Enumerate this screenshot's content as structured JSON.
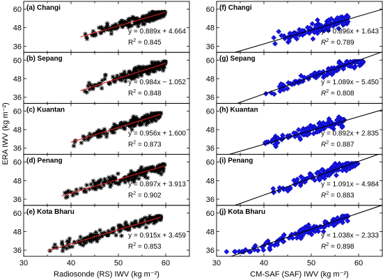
{
  "chart_data": {
    "type": "scatter",
    "panels": [
      {
        "letter": "(a)",
        "station": "Changi",
        "source": "Radiosonde",
        "equation": "y = 0.889x + 4.664",
        "r2_label": "R",
        "r2_value": " = 0.845",
        "slope": 0.889,
        "intercept": 4.664,
        "x_range": [
          42,
          60
        ],
        "y_range": [
          36.5,
          58
        ],
        "marker": "star",
        "fit_color": "#e02020"
      },
      {
        "letter": "(b)",
        "station": "Sepang",
        "source": "Radiosonde",
        "equation": "y = 0.984x − 1.052",
        "r2_label": "R",
        "r2_value": " = 0.848",
        "slope": 0.984,
        "intercept": -1.052,
        "x_range": [
          42,
          60
        ],
        "y_range": [
          37,
          59
        ],
        "marker": "star",
        "fit_color": "#e02020"
      },
      {
        "letter": "(c)",
        "station": "Kuantan",
        "source": "Radiosonde",
        "equation": "y = 0.956x + 1.600",
        "r2_label": "R",
        "r2_value": " = 0.873",
        "slope": 0.956,
        "intercept": 1.6,
        "x_range": [
          40,
          59
        ],
        "y_range": [
          36.5,
          58.5
        ],
        "marker": "star",
        "fit_color": "#e02020"
      },
      {
        "letter": "(d)",
        "station": "Penang",
        "source": "Radiosonde",
        "equation": "y = 0.897x + 3.913",
        "r2_label": "R",
        "r2_value": " = 0.902",
        "slope": 0.897,
        "intercept": 3.913,
        "x_range": [
          38,
          60
        ],
        "y_range": [
          36.5,
          58.5
        ],
        "marker": "star",
        "fit_color": "#e02020"
      },
      {
        "letter": "(e)",
        "station": "Kota Bharu",
        "source": "Radiosonde",
        "equation": "y = 0.915x + 3.459",
        "r2_label": "R",
        "r2_value": " = 0.853",
        "slope": 0.915,
        "intercept": 3.459,
        "x_range": [
          35,
          59
        ],
        "y_range": [
          35.5,
          58
        ],
        "marker": "star",
        "fit_color": "#e02020"
      },
      {
        "letter": "(f)",
        "station": "Changi",
        "source": "CM-SAF",
        "equation": "y = 0.896x + 1.643",
        "r2_label": "R",
        "r2_value": " = 0.789",
        "slope": 0.896,
        "intercept": 1.643,
        "x_range": [
          41,
          58
        ],
        "y_range": [
          37.5,
          58
        ],
        "marker": "diamond",
        "fit_color": "#000000"
      },
      {
        "letter": "(g)",
        "station": "Sepang",
        "source": "CM-SAF",
        "equation": "y = 1.089x − 5.450",
        "r2_label": "R",
        "r2_value": " = 0.808",
        "slope": 1.089,
        "intercept": -5.45,
        "x_range": [
          40,
          61
        ],
        "y_range": [
          37,
          59
        ],
        "marker": "diamond",
        "fit_color": "#000000"
      },
      {
        "letter": "(h)",
        "station": "Kuantan",
        "source": "CM-SAF",
        "equation": "y = 0.892x + 2.835",
        "r2_label": "R",
        "r2_value": " = 0.887",
        "slope": 0.892,
        "intercept": 2.835,
        "x_range": [
          39,
          57
        ],
        "y_range": [
          36,
          58
        ],
        "marker": "diamond",
        "fit_color": "#000000"
      },
      {
        "letter": "(i)",
        "station": "Penang",
        "source": "CM-SAF",
        "equation": "y = 1.091x − 4.984",
        "r2_label": "R",
        "r2_value": " = 0.883",
        "slope": 1.091,
        "intercept": -4.984,
        "x_range": [
          39,
          60
        ],
        "y_range": [
          36.5,
          59
        ],
        "marker": "diamond",
        "fit_color": "#000000"
      },
      {
        "letter": "(j)",
        "station": "Kota Bharu",
        "source": "CM-SAF",
        "equation": "y = 1.038x − 2.333",
        "r2_label": "R",
        "r2_value": " = 0.898",
        "slope": 1.038,
        "intercept": -2.333,
        "x_range": [
          31,
          58
        ],
        "y_range": [
          35,
          58
        ],
        "marker": "diamond",
        "fit_color": "#000000"
      }
    ],
    "x_axis": {
      "left_label": "Radiosonde (RS) IWV (kg m⁻²)",
      "right_label": "CM-SAF (SAF) IWV (kg m⁻²)",
      "range": [
        30,
        65
      ],
      "ticks": [
        30,
        40,
        50,
        60
      ],
      "minor_ticks": [
        35,
        45,
        55,
        65
      ]
    },
    "y_axis": {
      "label": "ERA IWV (kg m⁻²)",
      "range": [
        32,
        65
      ],
      "ticks": [
        36,
        48,
        60
      ]
    },
    "r2_superscript": "2",
    "grid": false
  }
}
